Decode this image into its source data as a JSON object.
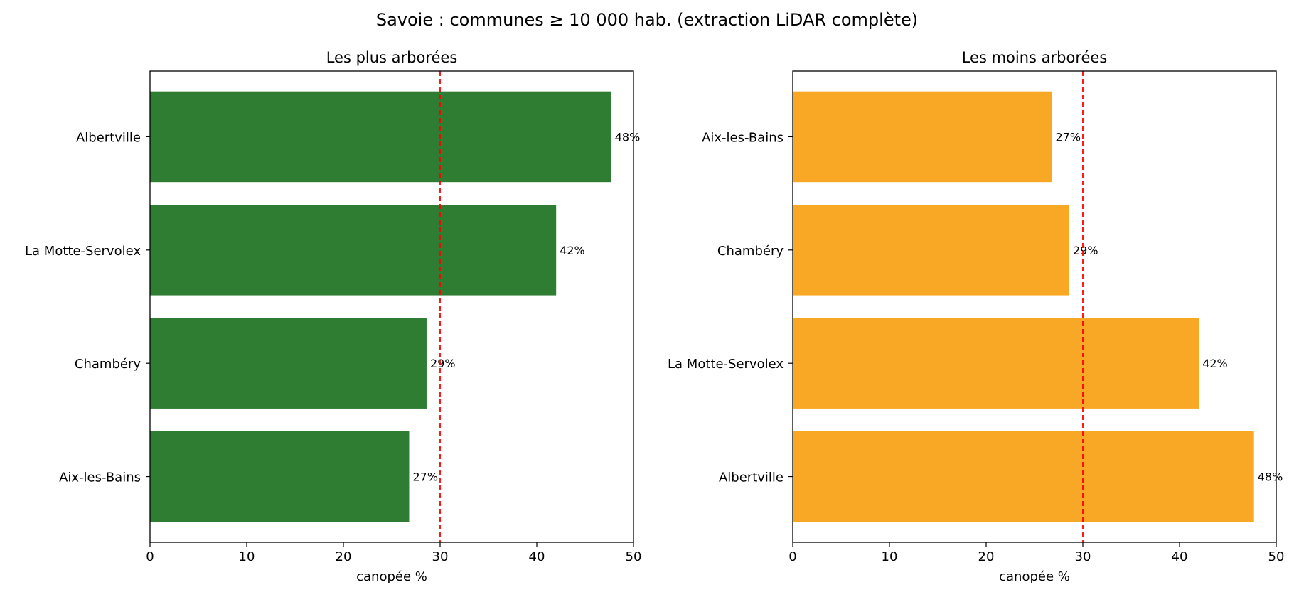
{
  "figure_title": "Savoie : communes ≥ 10 000 hab. (extraction LiDAR complète)",
  "colors": {
    "left_bars": "#2e7d32",
    "right_bars": "#f9a825",
    "reference_line": "#ff0000",
    "axes": "#000000"
  },
  "chart_data": [
    {
      "type": "bar",
      "orientation": "horizontal",
      "title": "Les plus arborées",
      "categories": [
        "Albertville",
        "La Motte-Servolex",
        "Chambéry",
        "Aix-les-Bains"
      ],
      "values": [
        47.7,
        42.0,
        28.6,
        26.8
      ],
      "value_labels": [
        "48%",
        "42%",
        "29%",
        "27%"
      ],
      "xlabel": "canopée %",
      "ylabel": "",
      "xlim": [
        0,
        50
      ],
      "xticks": [
        0,
        10,
        20,
        30,
        40,
        50
      ],
      "reference_line": {
        "x": 30,
        "style": "dashed"
      },
      "grid": false
    },
    {
      "type": "bar",
      "orientation": "horizontal",
      "title": "Les moins arborées",
      "categories": [
        "Aix-les-Bains",
        "Chambéry",
        "La Motte-Servolex",
        "Albertville"
      ],
      "values": [
        26.8,
        28.6,
        42.0,
        47.7
      ],
      "value_labels": [
        "27%",
        "29%",
        "42%",
        "48%"
      ],
      "xlabel": "canopée %",
      "ylabel": "",
      "xlim": [
        0,
        50
      ],
      "xticks": [
        0,
        10,
        20,
        30,
        40,
        50
      ],
      "reference_line": {
        "x": 30,
        "style": "dashed"
      },
      "grid": false
    }
  ]
}
